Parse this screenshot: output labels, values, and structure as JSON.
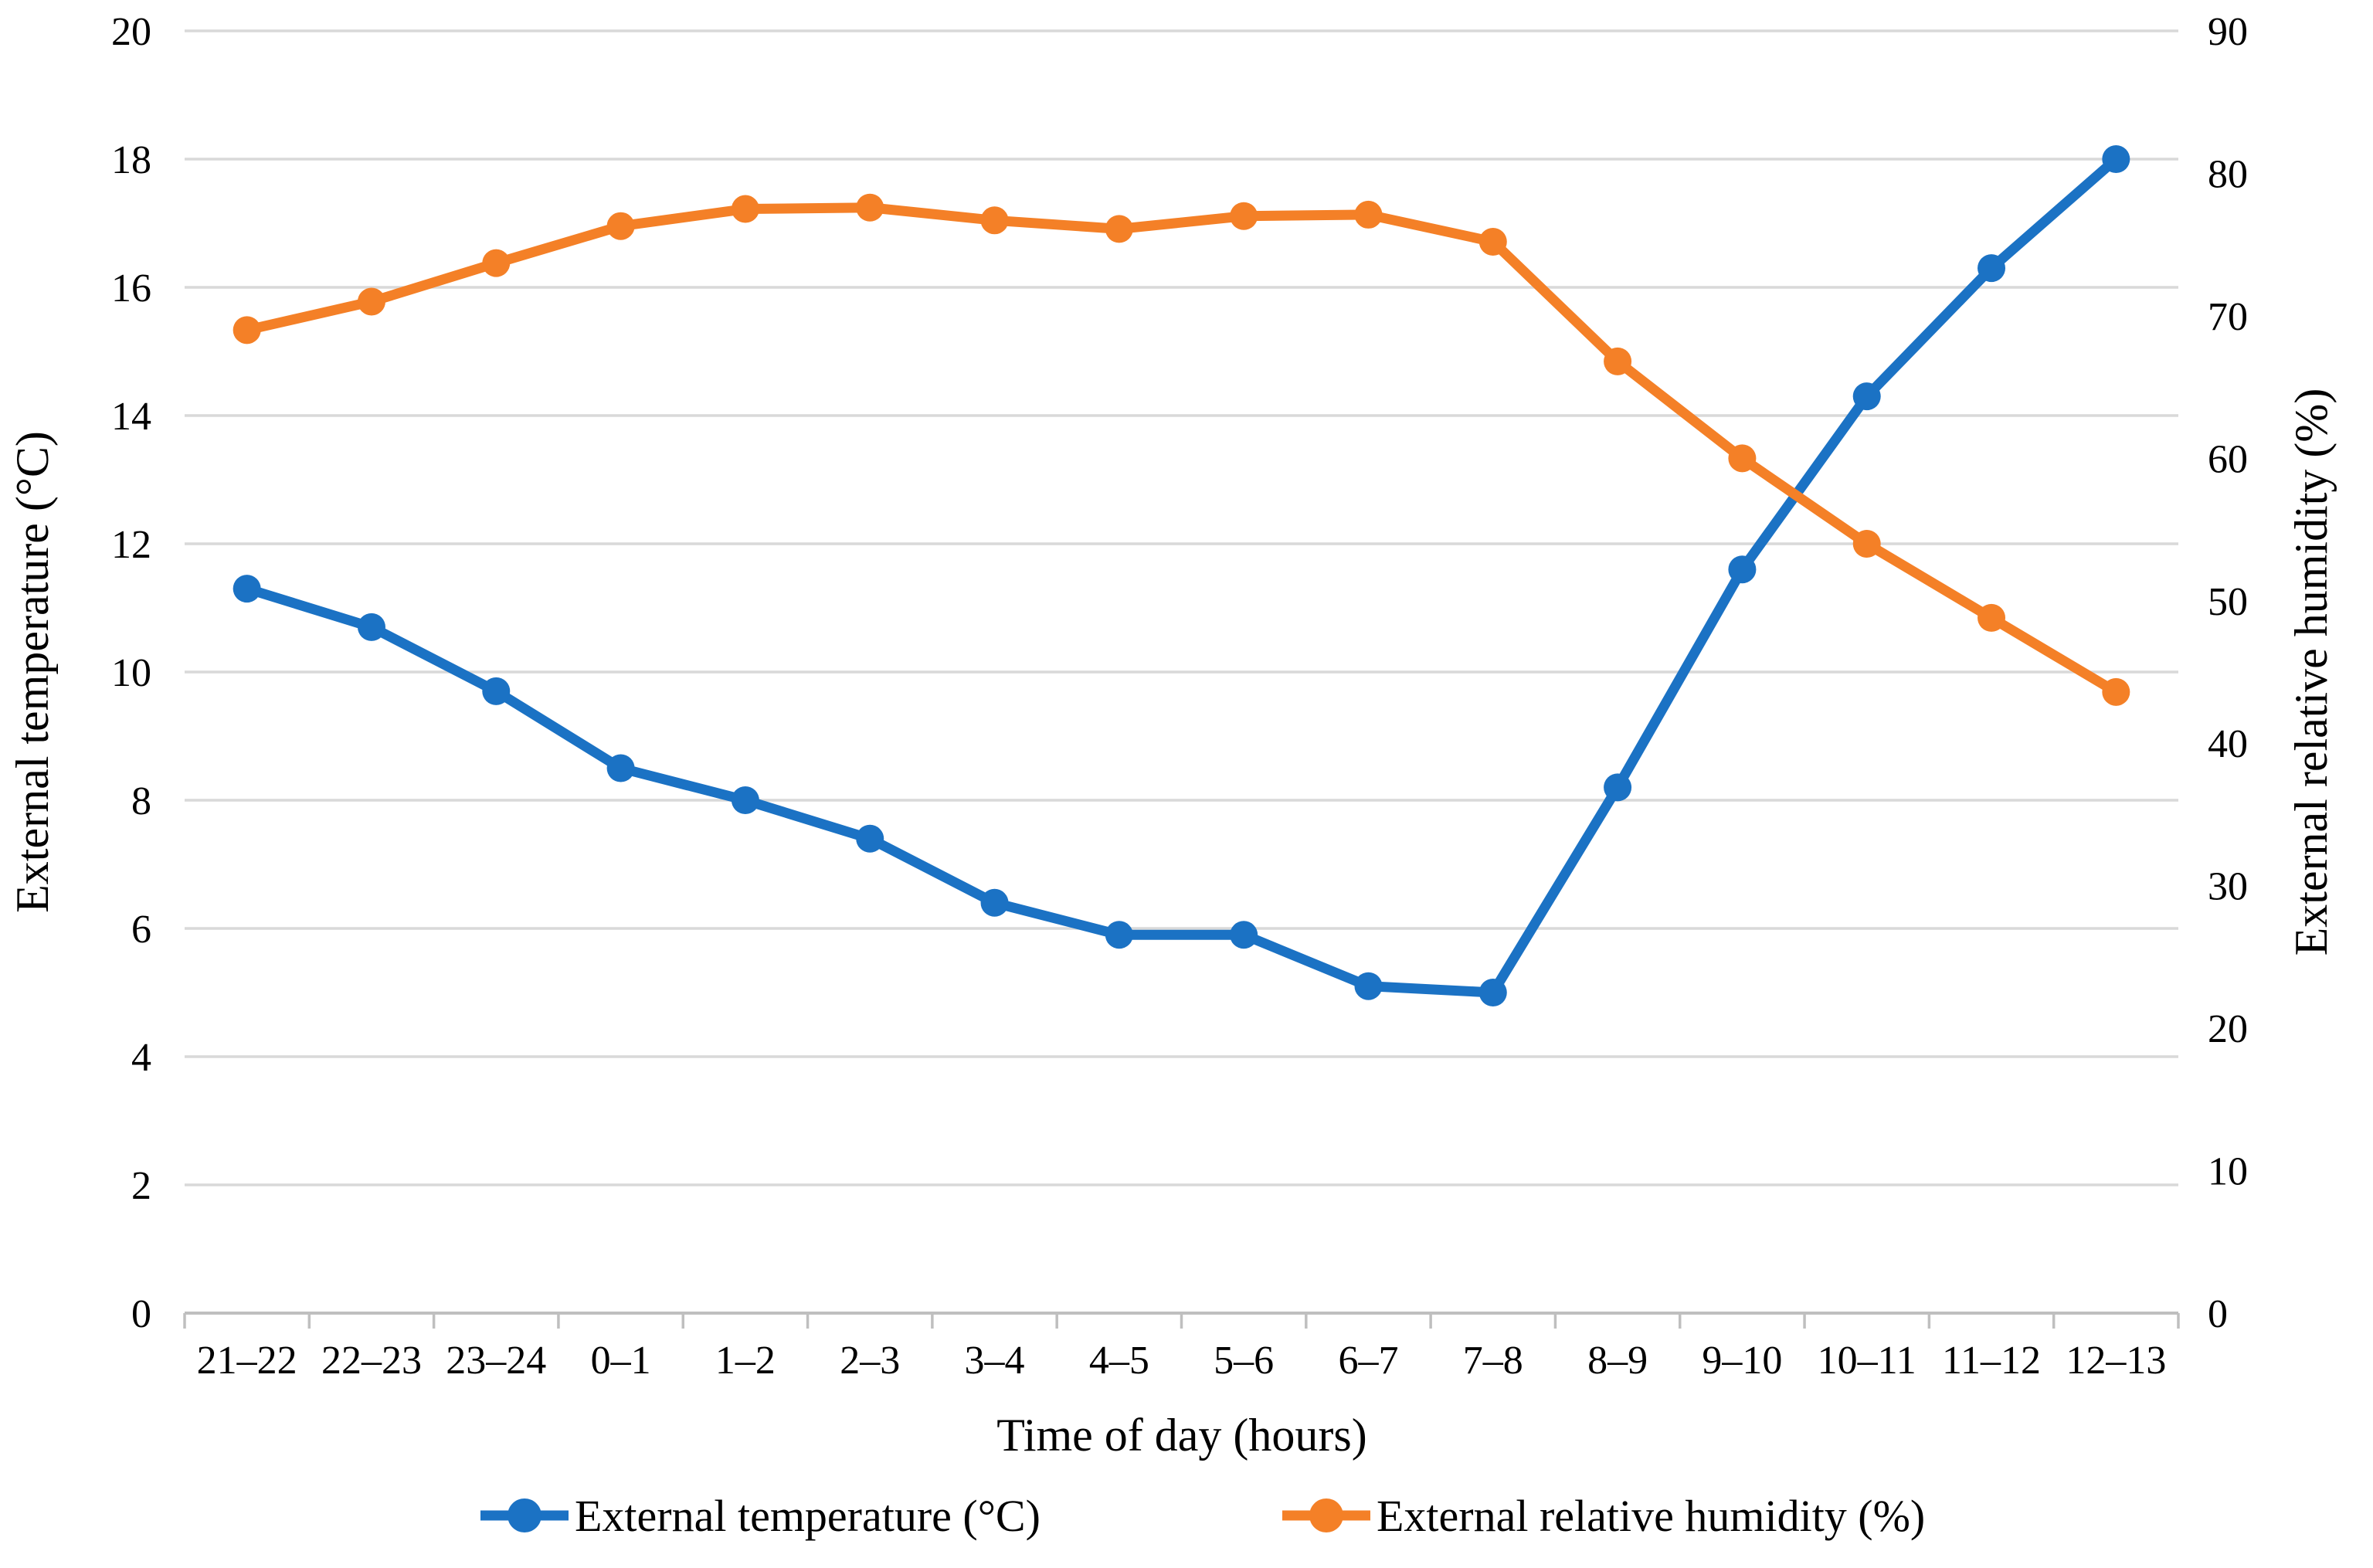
{
  "figure": {
    "background": "#FFFFFF",
    "gridline_color": "#D9D9D9",
    "axisline_color": "#BFBFBF",
    "text_color": "#000000"
  },
  "chart_data": {
    "type": "line",
    "title": "",
    "categories": [
      "21–22",
      "22–23",
      "23–24",
      "0–1",
      "1–2",
      "2–3",
      "3–4",
      "4–5",
      "5–6",
      "6–7",
      "7–8",
      "8–9",
      "9–10",
      "10–11",
      "11–12",
      "12–13"
    ],
    "series": [
      {
        "name": "External temperature (°C)",
        "axis": "left",
        "color": "#1B72C4",
        "values": [
          11.3,
          10.7,
          9.7,
          8.5,
          8.0,
          7.4,
          6.4,
          5.9,
          5.9,
          5.1,
          5.0,
          8.2,
          11.6,
          14.3,
          16.3,
          18.0
        ]
      },
      {
        "name": "External relative humidity (%)",
        "axis": "right",
        "color": "#F48027",
        "values": [
          69.0,
          71.0,
          73.7,
          76.3,
          77.5,
          77.6,
          76.7,
          76.1,
          77.0,
          77.1,
          75.2,
          66.8,
          60.0,
          54.0,
          48.8,
          43.6
        ]
      }
    ],
    "x_axis": {
      "title": "Time of day (hours)",
      "tick_labels": [
        "21–22",
        "22–23",
        "23–24",
        "0–1",
        "1–2",
        "2–3",
        "3–4",
        "4–5",
        "5–6",
        "6–7",
        "7–8",
        "8–9",
        "9–10",
        "10–11",
        "11–12",
        "12–13"
      ]
    },
    "y_axis_left": {
      "title": "External temperature (°C)",
      "min": 0,
      "max": 20,
      "step": 2,
      "tick_labels": [
        "20",
        "18",
        "16",
        "14",
        "12",
        "10",
        "8",
        "6",
        "4",
        "2",
        "0"
      ]
    },
    "y_axis_right": {
      "title": "External relative humidity (%)",
      "min": 0,
      "max": 90,
      "step": 10,
      "tick_labels": [
        "90",
        "80",
        "70",
        "60",
        "50",
        "40",
        "30",
        "20",
        "10",
        "0"
      ]
    },
    "grid": "horizontal",
    "legend_position": "bottom",
    "legend": [
      "External temperature (°C)",
      "External relative humidity (%)"
    ]
  }
}
